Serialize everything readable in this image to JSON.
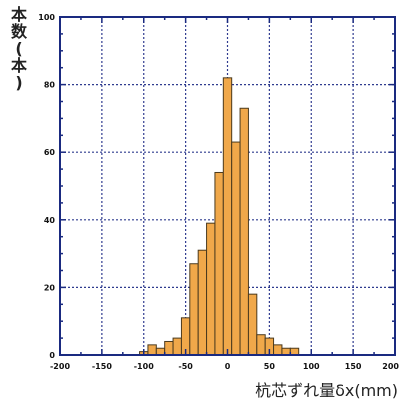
{
  "chart_data": {
    "type": "bar",
    "title": "",
    "ylabel": "本数(本)",
    "xlabel": "杭芯ずれ量δx(mm)",
    "x_ticks": [
      "-200",
      "-150",
      "-100",
      "-50",
      "0",
      "50",
      "100",
      "150",
      "200"
    ],
    "y_ticks": [
      "0",
      "20",
      "40",
      "60",
      "80",
      "100"
    ],
    "xlim": [
      -200,
      200
    ],
    "ylim": [
      0,
      100
    ],
    "grid": true,
    "bin_width": 10,
    "bins": [
      {
        "x": -110,
        "value": 0
      },
      {
        "x": -100,
        "value": 1
      },
      {
        "x": -90,
        "value": 3
      },
      {
        "x": -80,
        "value": 2
      },
      {
        "x": -70,
        "value": 4
      },
      {
        "x": -60,
        "value": 5
      },
      {
        "x": -50,
        "value": 11
      },
      {
        "x": -40,
        "value": 27
      },
      {
        "x": -30,
        "value": 31
      },
      {
        "x": -20,
        "value": 39
      },
      {
        "x": -10,
        "value": 54
      },
      {
        "x": 0,
        "value": 82
      },
      {
        "x": 10,
        "value": 63
      },
      {
        "x": 20,
        "value": 73
      },
      {
        "x": 30,
        "value": 18
      },
      {
        "x": 40,
        "value": 6
      },
      {
        "x": 50,
        "value": 5
      },
      {
        "x": 60,
        "value": 3
      },
      {
        "x": 70,
        "value": 2
      },
      {
        "x": 80,
        "value": 2
      },
      {
        "x": 90,
        "value": 0
      }
    ],
    "colors": {
      "bar_fill": "#f0a84a",
      "bar_stroke": "#4a3a1e",
      "grid": "#2f3b8f",
      "axis": "#1a2a80"
    }
  }
}
